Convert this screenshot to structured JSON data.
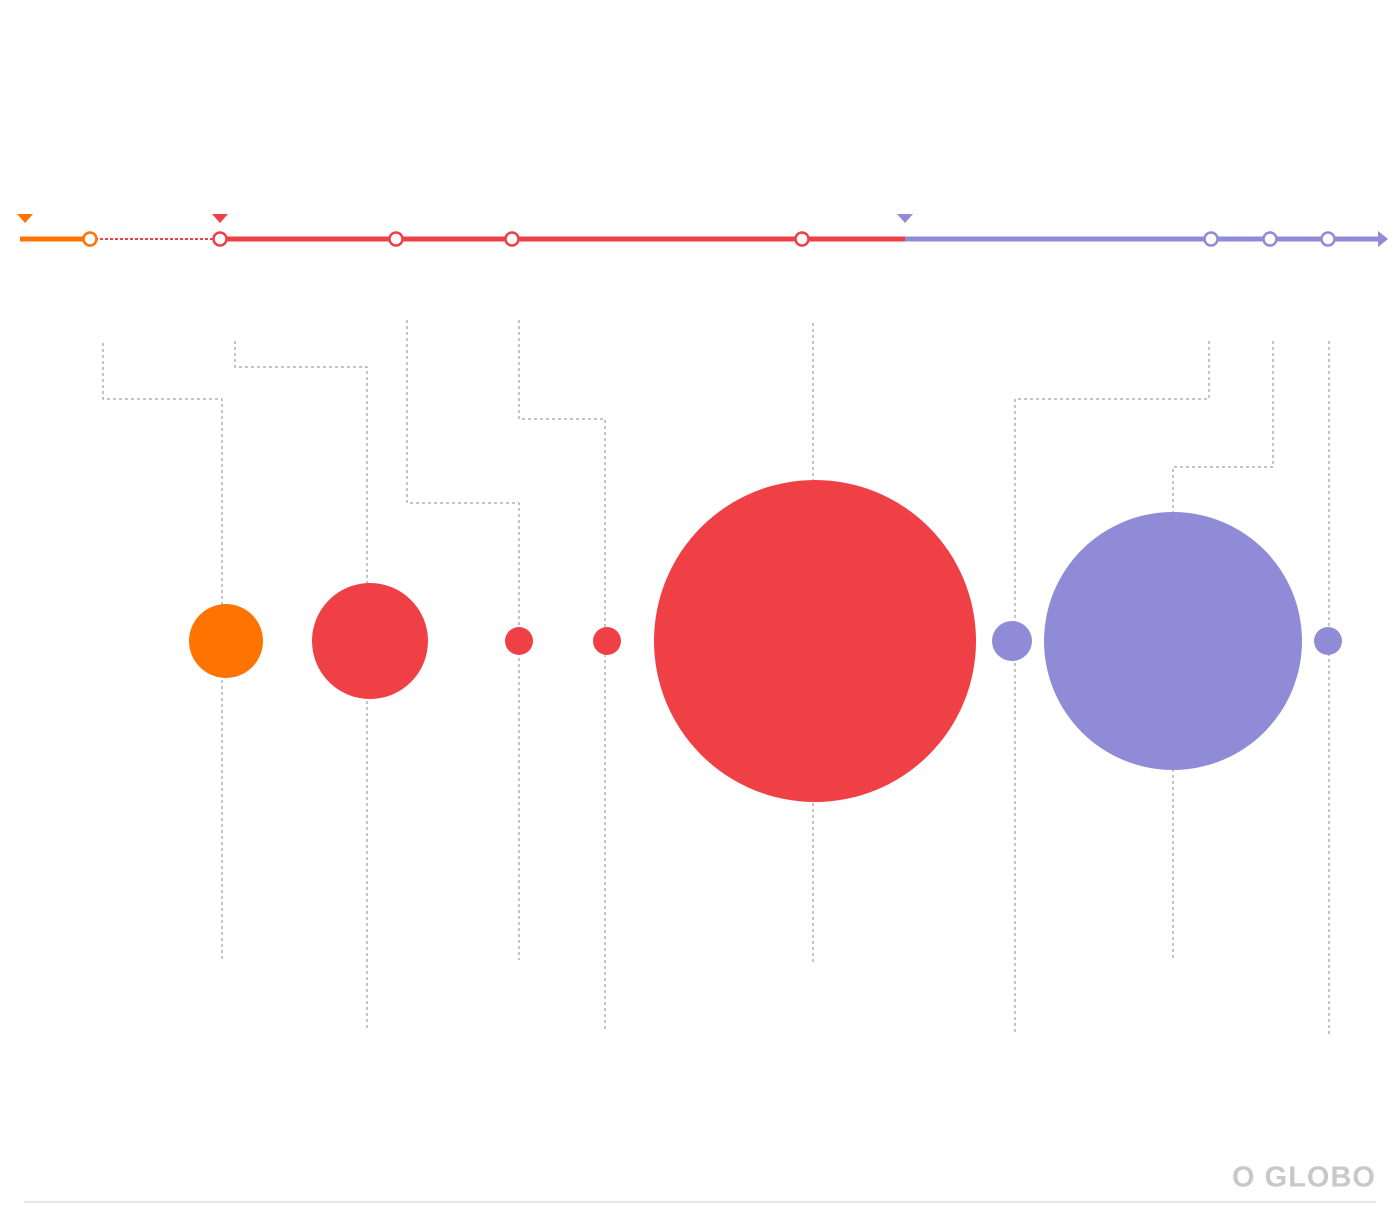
{
  "logo": "O GLOBO"
}
